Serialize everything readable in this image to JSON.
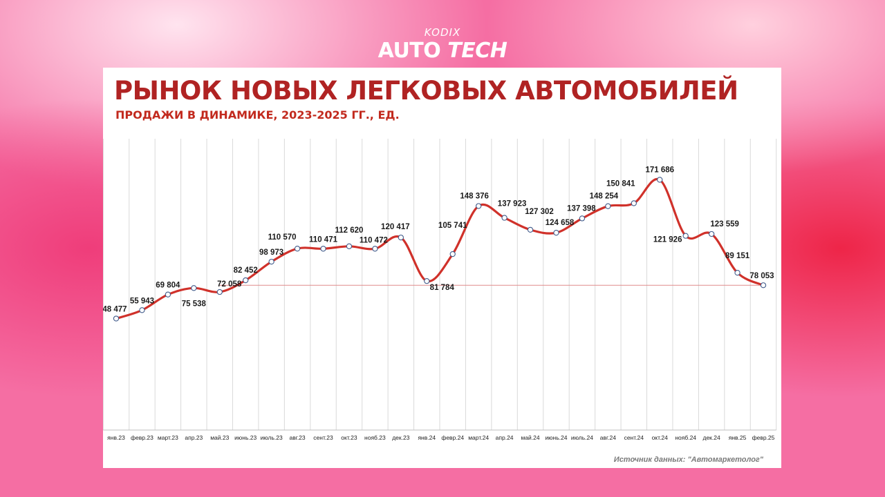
{
  "brand": {
    "top": "KODIX",
    "word1": "AUTO",
    "word2": "TECH"
  },
  "source": "Источник данных: \"Автомаркетолог\"",
  "colors": {
    "line": "#d0312a",
    "title": "#b02323",
    "subtitle": "#c22a1e",
    "grid": "#d9d9d9"
  },
  "chart_data": {
    "type": "line",
    "title": "РЫНОК НОВЫХ ЛЕГКОВЫХ АВТОМОБИЛЕЙ",
    "subtitle": "ПРОДАЖИ В ДИНАМИКЕ, 2023-2025 ГГ., ЕД.",
    "categories": [
      "янв.23",
      "февр.23",
      "март.23",
      "апр.23",
      "май.23",
      "июнь.23",
      "июль.23",
      "авг.23",
      "сент.23",
      "окт.23",
      "нояб.23",
      "дек.23",
      "янв.24",
      "февр.24",
      "март.24",
      "апр.24",
      "май.24",
      "июнь.24",
      "июль.24",
      "авг.24",
      "сент.24",
      "окт.24",
      "нояб.24",
      "дек.24",
      "янв.25",
      "февр.25"
    ],
    "values": [
      48477,
      55943,
      69804,
      75538,
      72058,
      82452,
      98973,
      110570,
      110471,
      112620,
      110472,
      120417,
      81784,
      105741,
      148376,
      137923,
      127302,
      124658,
      137398,
      148254,
      150841,
      171686,
      121926,
      123559,
      89151,
      78053
    ],
    "data_labels": [
      "48 477",
      "55 943",
      "69 804",
      "75 538",
      "72 058",
      "82 452",
      "98 973",
      "110 570",
      "110 471",
      "112 620",
      "110 472",
      "120 417",
      "81 784",
      "105 741",
      "148 376",
      "137 923",
      "127 302",
      "124 658",
      "137 398",
      "148 254",
      "150 841",
      "171 686",
      "121 926",
      "123 559",
      "89 151",
      "78 053"
    ],
    "reference_line": 78053,
    "grid": "vertical",
    "legend": "none"
  }
}
